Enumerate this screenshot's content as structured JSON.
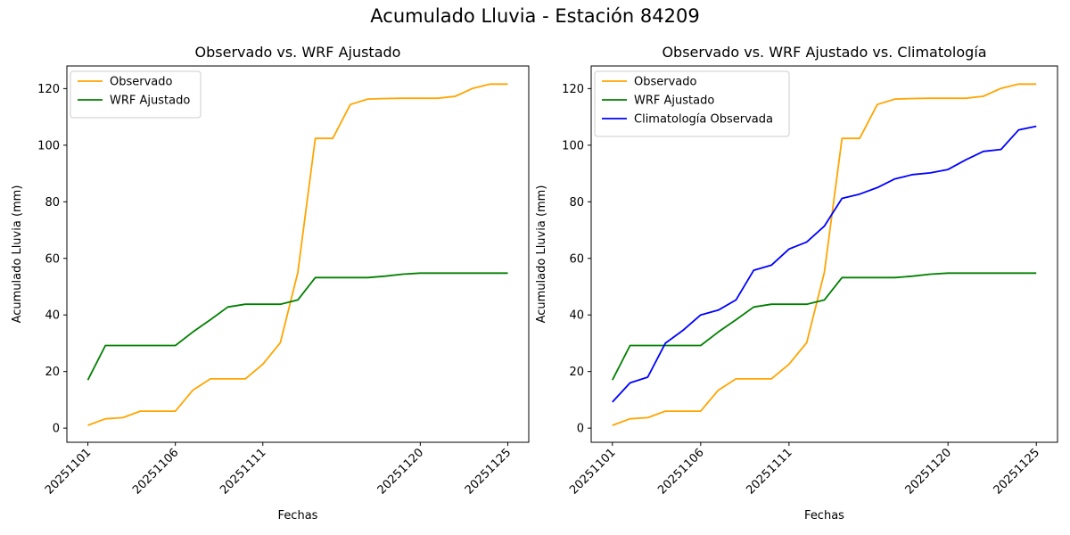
{
  "figure": {
    "title": "Acumulado Lluvia - Estación 84209"
  },
  "chart_data": [
    {
      "type": "line",
      "title": "Observado vs. WRF Ajustado",
      "xlabel": "Fechas",
      "ylabel": "Acumulado Lluvia (mm)",
      "x": [
        "20251101",
        "20251102",
        "20251103",
        "20251104",
        "20251105",
        "20251106",
        "20251107",
        "20251108",
        "20251109",
        "20251110",
        "20251111",
        "20251112",
        "20251113",
        "20251114",
        "20251115",
        "20251116",
        "20251117",
        "20251118",
        "20251119",
        "20251120",
        "20251121",
        "20251122",
        "20251123",
        "20251124",
        "20251125"
      ],
      "xticks": [
        "20251101",
        "20251106",
        "20251111",
        "20251120",
        "20251125"
      ],
      "yticks": [
        0,
        20,
        40,
        60,
        80,
        100,
        120
      ],
      "ylim": [
        -5,
        128
      ],
      "grid": false,
      "legend": "top-left",
      "series": [
        {
          "name": "Observado",
          "color": "#FFA500",
          "values": [
            1.0,
            3.3,
            3.7,
            6.0,
            6.0,
            6.0,
            13.4,
            17.4,
            17.4,
            17.4,
            22.6,
            30.2,
            55.0,
            102.4,
            102.4,
            114.4,
            116.3,
            116.5,
            116.6,
            116.6,
            116.6,
            117.3,
            120.1,
            121.6,
            121.6
          ]
        },
        {
          "name": "WRF Ajustado",
          "color": "#008000",
          "values": [
            17.0,
            29.2,
            29.2,
            29.2,
            29.2,
            29.2,
            34.0,
            38.3,
            42.8,
            43.8,
            43.8,
            43.8,
            45.3,
            53.2,
            53.2,
            53.2,
            53.2,
            53.7,
            54.4,
            54.8,
            54.8,
            54.8,
            54.8,
            54.8,
            54.8
          ]
        }
      ]
    },
    {
      "type": "line",
      "title": "Observado vs. WRF Ajustado vs. Climatología",
      "xlabel": "Fechas",
      "ylabel": "Acumulado Lluvia (mm)",
      "x": [
        "20251101",
        "20251102",
        "20251103",
        "20251104",
        "20251105",
        "20251106",
        "20251107",
        "20251108",
        "20251109",
        "20251110",
        "20251111",
        "20251112",
        "20251113",
        "20251114",
        "20251115",
        "20251116",
        "20251117",
        "20251118",
        "20251119",
        "20251120",
        "20251121",
        "20251122",
        "20251123",
        "20251124",
        "20251125"
      ],
      "xticks": [
        "20251101",
        "20251106",
        "20251111",
        "20251120",
        "20251125"
      ],
      "yticks": [
        0,
        20,
        40,
        60,
        80,
        100,
        120
      ],
      "ylim": [
        -5,
        128
      ],
      "grid": false,
      "legend": "top-left",
      "series": [
        {
          "name": "Observado",
          "color": "#FFA500",
          "values": [
            1.0,
            3.3,
            3.7,
            6.0,
            6.0,
            6.0,
            13.4,
            17.4,
            17.4,
            17.4,
            22.6,
            30.2,
            55.0,
            102.4,
            102.4,
            114.4,
            116.3,
            116.5,
            116.6,
            116.6,
            116.6,
            117.3,
            120.1,
            121.6,
            121.6
          ]
        },
        {
          "name": "WRF Ajustado",
          "color": "#008000",
          "values": [
            17.0,
            29.2,
            29.2,
            29.2,
            29.2,
            29.2,
            34.0,
            38.3,
            42.8,
            43.8,
            43.8,
            43.8,
            45.3,
            53.2,
            53.2,
            53.2,
            53.2,
            53.7,
            54.4,
            54.8,
            54.8,
            54.8,
            54.8,
            54.8,
            54.8
          ]
        },
        {
          "name": "Climatología Observada",
          "color": "#0000FF",
          "values": [
            9.2,
            16.0,
            18.0,
            30.0,
            34.6,
            40.0,
            41.7,
            45.3,
            55.8,
            57.6,
            63.3,
            65.8,
            71.4,
            81.2,
            82.7,
            85.0,
            88.1,
            89.6,
            90.2,
            91.4,
            94.8,
            97.8,
            98.5,
            105.4,
            106.7
          ]
        }
      ]
    }
  ]
}
